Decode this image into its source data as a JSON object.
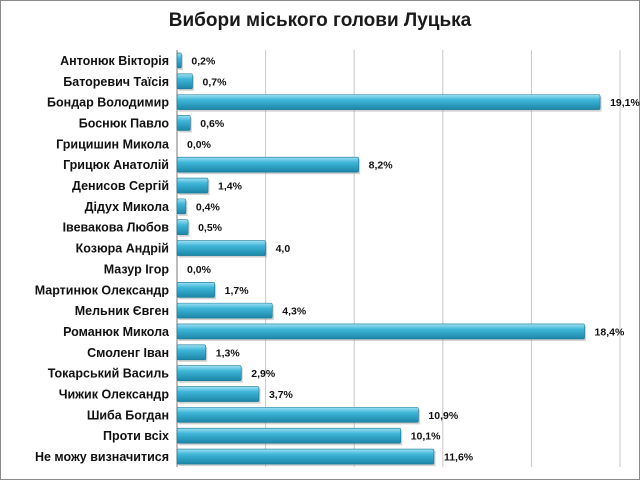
{
  "chart_data": {
    "type": "bar",
    "orientation": "horizontal",
    "title": "Вибори міського голови Луцька",
    "xlabel": "",
    "ylabel": "",
    "xlim": [
      0,
      20
    ],
    "grid": true,
    "legend": "none",
    "bar_color": "#2aa6c9",
    "categories": [
      "Антонюк Вікторія",
      "Баторевич Таїсія",
      "Бондар Володимир",
      "Боснюк Павло",
      "Грицишин Микола",
      "Грицюк Анатолій",
      "Денисов Сергій",
      "Дідух Микола",
      "Івевакова Любов",
      "Козюра Андрій",
      "Мазур Ігор",
      "Мартинюк Олександр",
      "Мельник Євген",
      "Романюк Микола",
      "Смоленг Іван",
      "Токарський Василь",
      "Чижик Олександр",
      "Шиба Богдан",
      "Проти всіх",
      "Не можу визначитися"
    ],
    "values": [
      0.2,
      0.7,
      19.1,
      0.6,
      0.0,
      8.2,
      1.4,
      0.4,
      0.5,
      4.0,
      0.0,
      1.7,
      4.3,
      18.4,
      1.3,
      2.9,
      3.7,
      10.9,
      10.1,
      11.6
    ],
    "data_labels": [
      "0,2%",
      "0,7%",
      "19,1%",
      "0,6%",
      "0,0%",
      "8,2%",
      "1,4%",
      "0,4%",
      "0,5%",
      "4,0",
      "0,0%",
      "1,7%",
      "4,3%",
      "18,4%",
      "1,3%",
      "2,9%",
      "3,7%",
      "10,9%",
      "10,1%",
      "11,6%"
    ]
  }
}
